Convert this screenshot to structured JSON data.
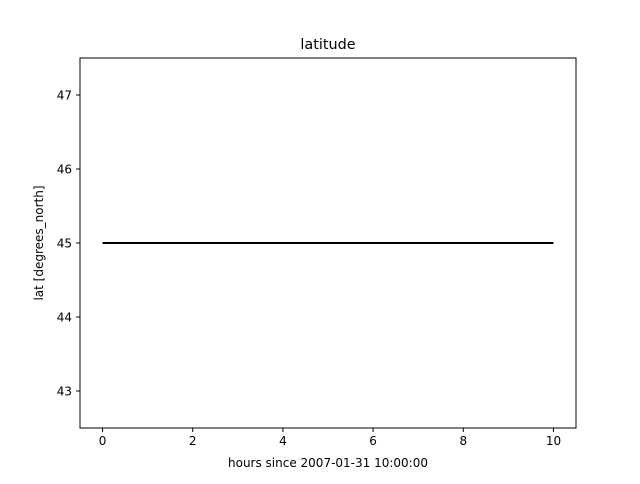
{
  "chart_data": {
    "type": "line",
    "title": "latitude",
    "xlabel": "hours since 2007-01-31 10:00:00",
    "ylabel": "lat [degrees_north]",
    "xlim": [
      -0.5,
      10.5
    ],
    "ylim": [
      42.5,
      47.5
    ],
    "xticks": [
      0,
      2,
      4,
      6,
      8,
      10
    ],
    "xtick_labels": [
      "0",
      "2",
      "4",
      "6",
      "8",
      "10"
    ],
    "yticks": [
      43,
      44,
      45,
      46,
      47
    ],
    "ytick_labels": [
      "43",
      "44",
      "45",
      "46",
      "47"
    ],
    "grid": false,
    "series": [
      {
        "x": [
          0,
          10
        ],
        "y": [
          45,
          45
        ],
        "color": "#000000"
      }
    ]
  }
}
